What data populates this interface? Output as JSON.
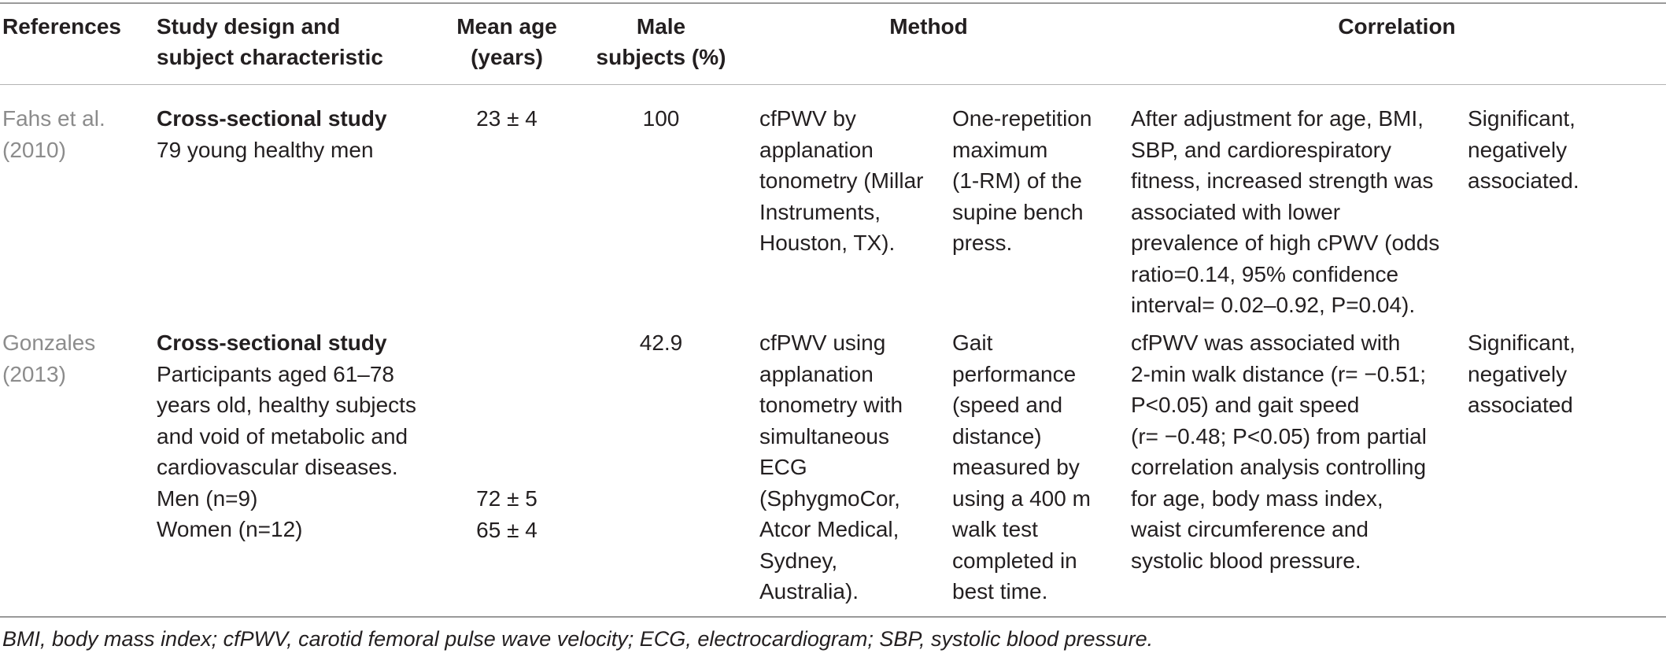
{
  "headers": {
    "references": "References",
    "study_design": [
      "Study design and",
      "subject characteristic"
    ],
    "mean_age": [
      "Mean age",
      "(years)"
    ],
    "male_subjects": [
      "Male",
      "subjects (%)"
    ],
    "method": "Method",
    "correlation": "Correlation"
  },
  "rows": [
    {
      "reference": [
        "Fahs et al.",
        "(2010)"
      ],
      "design_title": "Cross-sectional study",
      "design_lines": [
        "79 young healthy men"
      ],
      "mean_age": [
        "23 ± 4"
      ],
      "male_pct": "100",
      "method_a": [
        "cfPWV by",
        "applanation",
        "tonometry (Millar",
        "Instruments,",
        "Houston, TX)."
      ],
      "method_b": [
        "One-repetition",
        "maximum",
        "(1-RM) of the",
        "supine bench",
        "press."
      ],
      "correlation_text": [
        "After adjustment for age, BMI,",
        "SBP, and cardiorespiratory",
        "fitness, increased strength was",
        "associated with lower",
        "prevalence of high cPWV (odds",
        "ratio=0.14, 95% confidence",
        "interval= 0.02–0.92, P=0.04)."
      ],
      "correlation_result": [
        "Significant,",
        "negatively",
        "associated."
      ]
    },
    {
      "reference": [
        "Gonzales",
        "(2013)"
      ],
      "design_title": "Cross-sectional study",
      "design_lines": [
        "Participants aged 61–78",
        "years old, healthy subjects",
        "and void of metabolic and",
        "cardiovascular diseases.",
        "Men (n=9)",
        "Women (n=12)"
      ],
      "mean_age": [
        "72 ± 5",
        "65 ± 4"
      ],
      "male_pct": "42.9",
      "method_a": [
        "cfPWV using",
        "applanation",
        "tonometry with",
        "simultaneous",
        "ECG",
        "(SphygmoCor,",
        "Atcor Medical,",
        "Sydney,",
        "Australia)."
      ],
      "method_b": [
        "Gait",
        "performance",
        "(speed and",
        "distance)",
        "measured by",
        "using a 400 m",
        "walk test",
        "completed in",
        "best time."
      ],
      "correlation_text": [
        "cfPWV was associated with",
        "2-min walk distance (r= −0.51;",
        "P<0.05) and gait speed",
        "(r= −0.48; P<0.05) from partial",
        "correlation analysis controlling",
        "for age, body mass index,",
        "waist circumference and",
        "systolic blood pressure."
      ],
      "correlation_result": [
        "Significant,",
        "negatively",
        "associated"
      ]
    }
  ],
  "footnote": "BMI, body mass index; cfPWV, carotid femoral pulse wave velocity; ECG, electrocardiogram; SBP, systolic blood pressure."
}
